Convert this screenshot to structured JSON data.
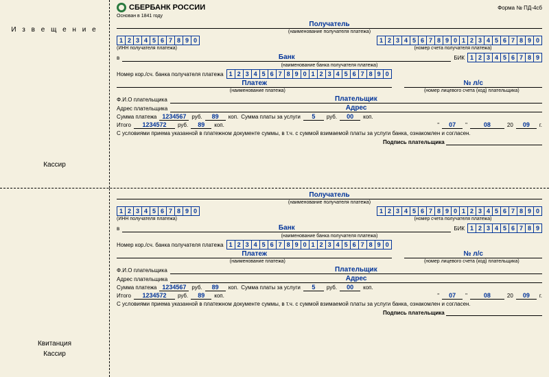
{
  "form_number": "Форма № ПД-4сб",
  "bank_name": "СБЕРБАНК РОССИИ",
  "founded": "Основан в 1841 году",
  "sections": {
    "notification": {
      "label": "И з в е щ е н и е",
      "cashier": "Кассир"
    },
    "receipt": {
      "label": "Квитанция",
      "cashier": "Кассир"
    }
  },
  "labels": {
    "recipient": "Получатель",
    "recipient_name_hint": "(наименование получателя платежа)",
    "inn_hint": "(ИНН получателя платежа)",
    "account_hint": "(номер счета получателя платежа)",
    "in": "в",
    "bank": "Банк",
    "bik": "БИК",
    "bank_name_hint": "(наименование банка получателя платежа)",
    "corr": "Номер кор./сч. банка получателя платежа",
    "payment": "Платеж",
    "ls": "№ л/с",
    "payment_name_hint": "(наименование платежа)",
    "ls_hint": "(номер лицевого счета (код) плательщика)",
    "fio": "Ф.И.О плательщика",
    "payer": "Плательщик",
    "address": "Адрес плательщика",
    "address_val": "Адрес",
    "sum": "Сумма платежа",
    "rub": "руб.",
    "kop": "коп.",
    "service_fee": "Сумма платы за услуги",
    "total": "Итого",
    "terms": "С условиями приема указанной в платежном документе суммы, в т.ч. с суммой взимаемой платы за услуги банка, ознакомлен и согласен.",
    "signature": "Подпись плательщика"
  },
  "values": {
    "inn": [
      "1",
      "2",
      "3",
      "4",
      "5",
      "6",
      "7",
      "8",
      "9",
      "0"
    ],
    "account": [
      "1",
      "2",
      "3",
      "4",
      "5",
      "6",
      "7",
      "8",
      "9",
      "0",
      "1",
      "2",
      "3",
      "4",
      "5",
      "6",
      "7",
      "8",
      "9",
      "0"
    ],
    "bik": [
      "1",
      "2",
      "3",
      "4",
      "5",
      "6",
      "7",
      "8",
      "9"
    ],
    "corr": [
      "1",
      "2",
      "3",
      "4",
      "5",
      "6",
      "7",
      "8",
      "9",
      "0",
      "1",
      "2",
      "3",
      "4",
      "5",
      "6",
      "7",
      "8",
      "9",
      "0"
    ],
    "sum": "1234567",
    "sum_kop": "89",
    "fee": "5",
    "fee_kop": "00",
    "total": "1234572",
    "total_kop": "89",
    "day": "07",
    "month": "08",
    "year": "09"
  }
}
